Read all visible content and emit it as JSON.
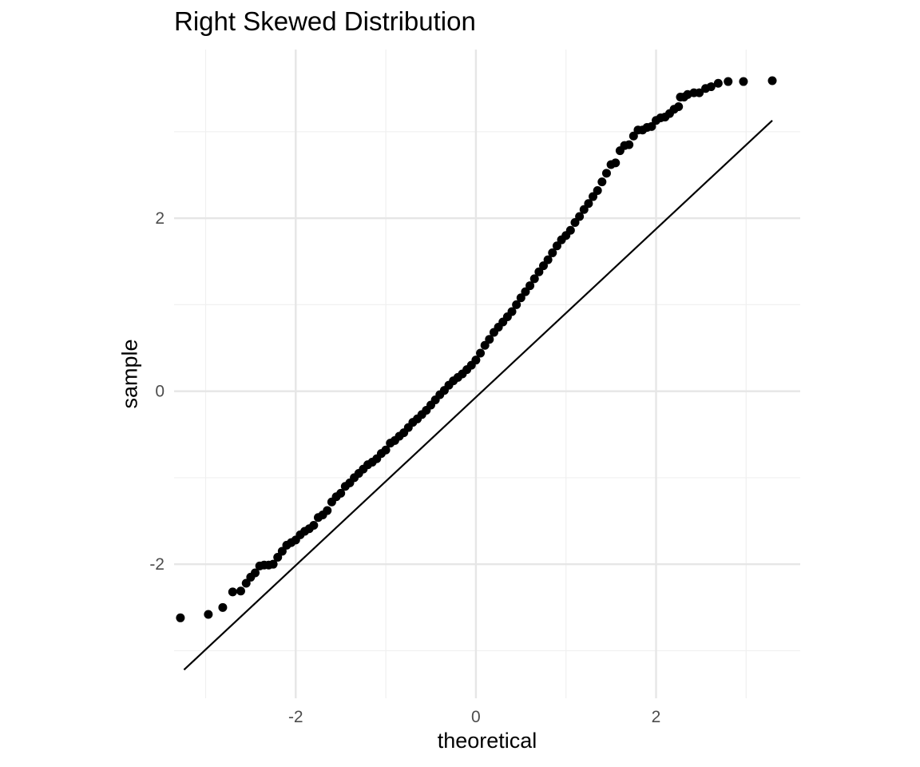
{
  "chart_data": {
    "type": "scatter",
    "title": "Right Skewed Distribution",
    "xlabel": "theoretical",
    "ylabel": "sample",
    "xlim": [
      -3.35,
      3.6
    ],
    "ylim": [
      -3.55,
      3.95
    ],
    "x_ticks": [
      -2,
      0,
      2
    ],
    "y_ticks": [
      -2,
      0,
      2
    ],
    "x_minor_grid": [
      -3,
      -1,
      1,
      3
    ],
    "y_minor_grid": [
      -3,
      -1,
      1,
      3
    ],
    "grid": true,
    "reference_line": {
      "x": [
        -3.24,
        3.29
      ],
      "y": [
        -3.22,
        3.13
      ]
    },
    "colors": {
      "points": "#000000",
      "line": "#000000",
      "grid_major": "#e6e6e6",
      "grid_minor": "#f0f0f0",
      "tick_text": "#4d4d4d"
    },
    "points": {
      "x": [
        -3.28,
        -2.97,
        -2.81,
        -2.7,
        -2.61,
        -2.55,
        -2.5,
        -2.45,
        -2.4,
        -2.35,
        -2.3,
        -2.25,
        -2.2,
        -2.15,
        -2.1,
        -2.05,
        -2.0,
        -1.95,
        -1.9,
        -1.85,
        -1.8,
        -1.75,
        -1.7,
        -1.65,
        -1.6,
        -1.55,
        -1.5,
        -1.45,
        -1.4,
        -1.35,
        -1.3,
        -1.25,
        -1.2,
        -1.15,
        -1.1,
        -1.05,
        -1.0,
        -0.95,
        -0.9,
        -0.85,
        -0.8,
        -0.75,
        -0.7,
        -0.65,
        -0.6,
        -0.55,
        -0.5,
        -0.45,
        -0.4,
        -0.35,
        -0.3,
        -0.25,
        -0.2,
        -0.15,
        -0.1,
        -0.05,
        0.0,
        0.05,
        0.1,
        0.15,
        0.2,
        0.25,
        0.3,
        0.35,
        0.4,
        0.45,
        0.5,
        0.55,
        0.6,
        0.65,
        0.7,
        0.75,
        0.8,
        0.85,
        0.9,
        0.95,
        1.0,
        1.05,
        1.1,
        1.15,
        1.2,
        1.25,
        1.3,
        1.35,
        1.4,
        1.45,
        1.5,
        1.55,
        1.6,
        1.65,
        1.7,
        1.75,
        1.8,
        1.85,
        1.9,
        1.95,
        2.0,
        2.05,
        2.1,
        2.15,
        2.2,
        2.25,
        2.27,
        2.31,
        2.35,
        2.42,
        2.48,
        2.55,
        2.61,
        2.69,
        2.8,
        2.97,
        3.29
      ],
      "y": [
        -2.62,
        -2.58,
        -2.5,
        -2.32,
        -2.31,
        -2.22,
        -2.15,
        -2.1,
        -2.02,
        -2.01,
        -2.01,
        -2.0,
        -1.92,
        -1.85,
        -1.78,
        -1.75,
        -1.72,
        -1.66,
        -1.62,
        -1.59,
        -1.55,
        -1.46,
        -1.43,
        -1.38,
        -1.28,
        -1.22,
        -1.18,
        -1.1,
        -1.06,
        -1.0,
        -0.95,
        -0.9,
        -0.85,
        -0.82,
        -0.78,
        -0.72,
        -0.68,
        -0.6,
        -0.57,
        -0.52,
        -0.48,
        -0.42,
        -0.36,
        -0.32,
        -0.27,
        -0.22,
        -0.16,
        -0.1,
        -0.04,
        0.01,
        0.07,
        0.12,
        0.16,
        0.2,
        0.25,
        0.3,
        0.36,
        0.44,
        0.53,
        0.6,
        0.68,
        0.74,
        0.8,
        0.86,
        0.92,
        1.0,
        1.08,
        1.15,
        1.22,
        1.3,
        1.38,
        1.45,
        1.52,
        1.6,
        1.68,
        1.75,
        1.8,
        1.86,
        1.95,
        2.02,
        2.1,
        2.17,
        2.25,
        2.32,
        2.42,
        2.52,
        2.62,
        2.78,
        2.85,
        3.02,
        3.05,
        3.06,
        3.17,
        3.26,
        3.4,
        3.43,
        3.45,
        3.5,
        3.58,
        2.64,
        2.84,
        2.95,
        3.02,
        3.13,
        3.16,
        3.21,
        3.29,
        3.4,
        3.45,
        3.52,
        3.56,
        3.58,
        3.59
      ]
    }
  }
}
